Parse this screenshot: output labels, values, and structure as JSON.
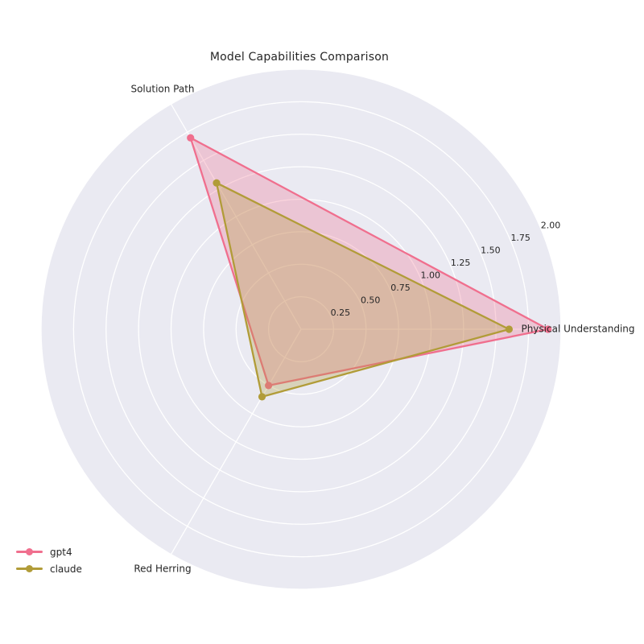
{
  "chart_data": {
    "type": "radar",
    "title": "Model Capabilities Comparison",
    "categories": [
      "Physical Understanding",
      "Solution Path",
      "Red Herring"
    ],
    "series": [
      {
        "name": "gpt4",
        "color": "#f06f8e",
        "values": [
          1.9,
          1.7,
          0.5
        ]
      },
      {
        "name": "claude",
        "color": "#b19c38",
        "values": [
          1.6,
          1.3,
          0.6
        ]
      }
    ],
    "r_ticks": [
      0.25,
      0.5,
      0.75,
      1.0,
      1.25,
      1.5,
      1.75,
      2.0
    ],
    "r_tick_labels": [
      "0.25",
      "0.50",
      "0.75",
      "1.00",
      "1.25",
      "1.50",
      "1.75",
      "2.00"
    ],
    "r_max": 2.0,
    "r_label_angle_deg": 22.5,
    "grid": true,
    "legend_position": "lower-left",
    "colors": {
      "polar_background": "#eaeaf2",
      "grid_line": "#ffffff",
      "text": "#262626"
    },
    "fill_opacity": 0.3
  }
}
